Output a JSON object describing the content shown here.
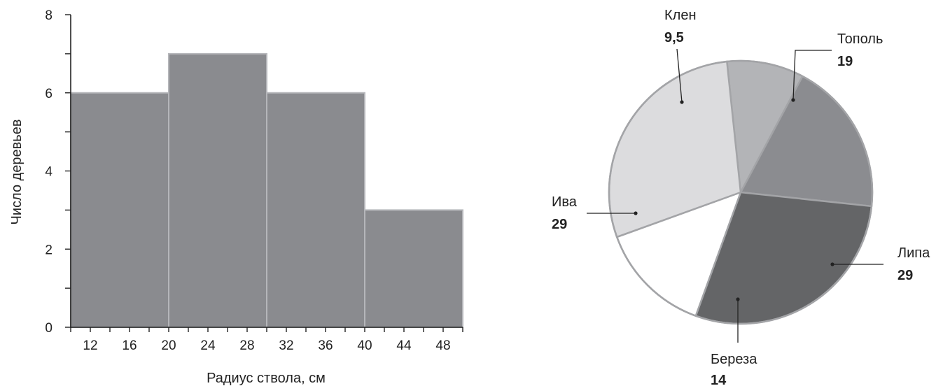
{
  "chart_data": [
    {
      "type": "bar",
      "subtype": "histogram",
      "bins": [
        [
          10,
          20
        ],
        [
          20,
          30
        ],
        [
          30,
          40
        ],
        [
          40,
          50
        ]
      ],
      "values": [
        6,
        7,
        6,
        3
      ],
      "xlabel": "Радиус ствола, см",
      "ylabel": "Число деревьев",
      "xlim": [
        10,
        50
      ],
      "ylim": [
        0,
        8
      ],
      "xticks": [
        12,
        16,
        20,
        24,
        28,
        32,
        36,
        40,
        44,
        48
      ],
      "yticks": [
        0,
        2,
        4,
        6,
        8
      ],
      "grid": false,
      "colors": {
        "bar": "#8a8b8f",
        "edge": "#b5b6ba",
        "axis": "#222222"
      }
    },
    {
      "type": "pie",
      "slices": [
        {
          "label": "Клен",
          "value": 9.5,
          "value_label": "9,5",
          "color": "#b3b4b7"
        },
        {
          "label": "Тополь",
          "value": 19,
          "value_label": "19",
          "color": "#8b8c90"
        },
        {
          "label": "Липа",
          "value": 29,
          "value_label": "29",
          "color": "#646567"
        },
        {
          "label": "Береза",
          "value": 14,
          "value_label": "14",
          "color": "#ffffff"
        },
        {
          "label": "Ива",
          "value": 29,
          "value_label": "29",
          "color": "#dcdcde"
        }
      ],
      "stroke_color": "#a3a4a7"
    }
  ]
}
